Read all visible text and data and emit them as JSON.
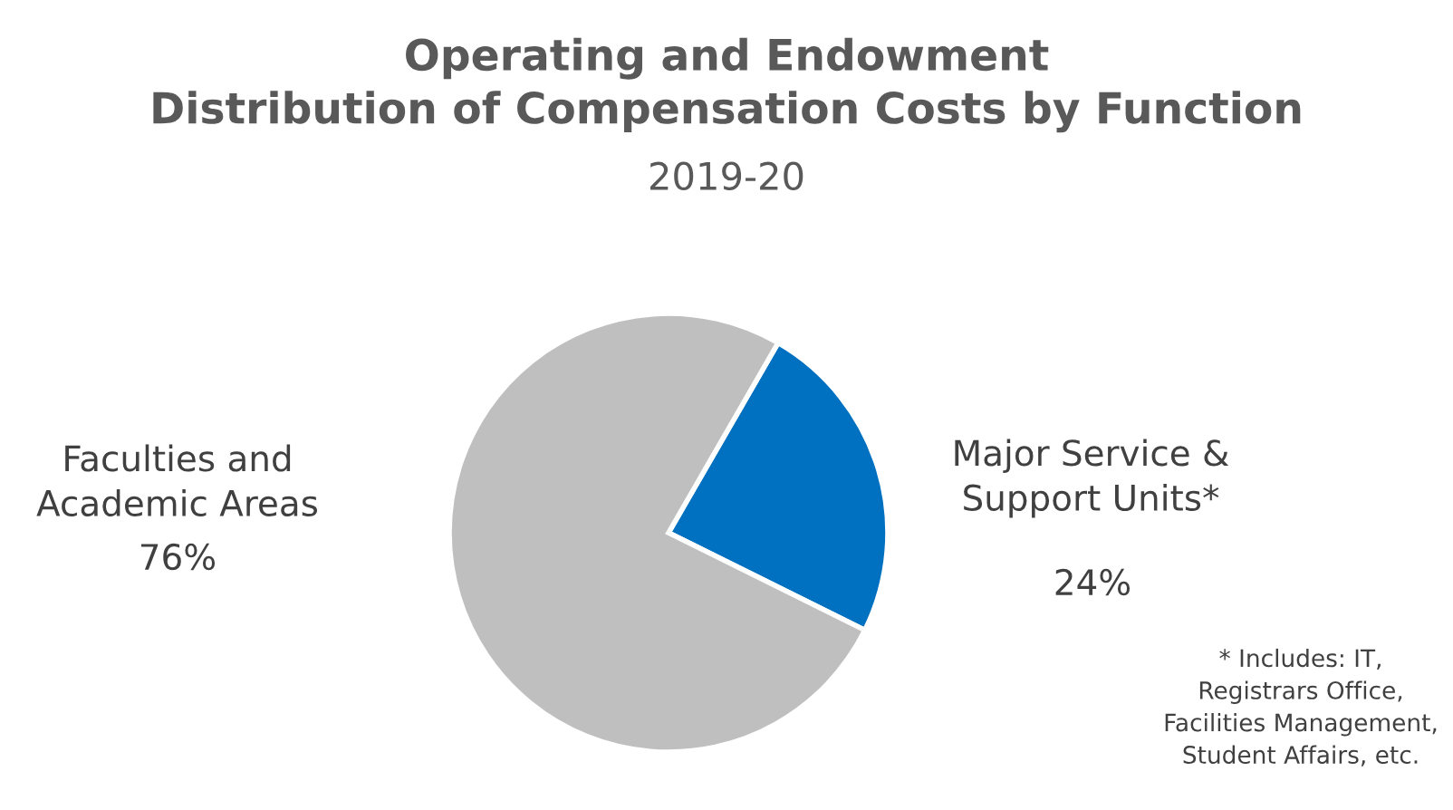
{
  "chart_data": {
    "type": "pie",
    "title": "Operating and Endowment\nDistribution of Compensation Costs by Function",
    "subtitle": "2019-20",
    "categories": [
      "Major Service &\nSupport Units*",
      "Faculties and\nAcademic Areas"
    ],
    "values": [
      24,
      76
    ],
    "colors": [
      "#0070c0",
      "#bfbfbf"
    ],
    "value_labels": [
      "24%",
      "76%"
    ],
    "annotations": [
      "* Includes: IT,\nRegistrars Office,\nFacilities Management,\nStudent Affairs, etc."
    ]
  }
}
